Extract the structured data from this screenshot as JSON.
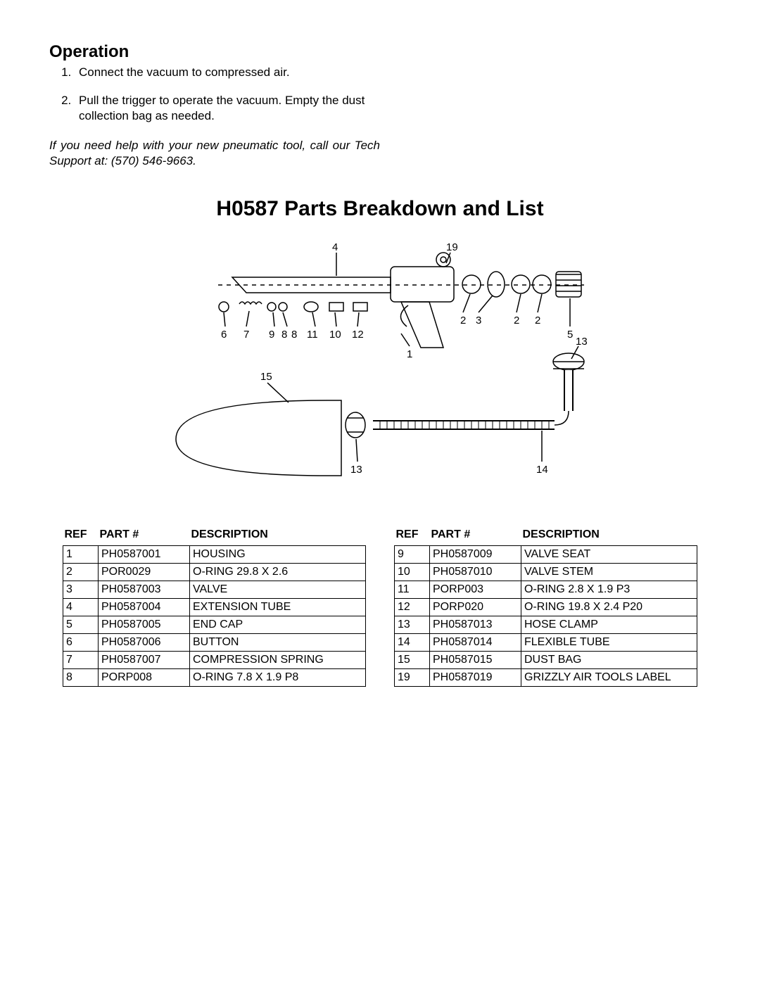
{
  "operation": {
    "heading": "Operation",
    "steps": [
      {
        "num": "1.",
        "text": "Connect the vacuum to compressed air."
      },
      {
        "num": "2.",
        "text": "Pull the trigger to operate the vacuum. Empty the dust collection bag as needed."
      }
    ],
    "help_note": "If you need help with your new pneumatic tool, call our Tech Support at: (570) 546-9663."
  },
  "main_title": "H0587 Parts Breakdown and List",
  "diagram": {
    "callouts": [
      "1",
      "2",
      "3",
      "4",
      "5",
      "6",
      "7",
      "8",
      "8",
      "9",
      "10",
      "11",
      "12",
      "13",
      "13",
      "14",
      "15",
      "19"
    ]
  },
  "table_headers": {
    "ref": "REF",
    "part": "PART #",
    "desc": "DESCRIPTION"
  },
  "parts_left": [
    {
      "ref": "1",
      "part": "PH0587001",
      "desc": "HOUSING"
    },
    {
      "ref": "2",
      "part": "POR0029",
      "desc": "O-RING 29.8 X 2.6"
    },
    {
      "ref": "3",
      "part": "PH0587003",
      "desc": "VALVE"
    },
    {
      "ref": "4",
      "part": "PH0587004",
      "desc": "EXTENSION TUBE"
    },
    {
      "ref": "5",
      "part": "PH0587005",
      "desc": "END CAP"
    },
    {
      "ref": "6",
      "part": "PH0587006",
      "desc": "BUTTON"
    },
    {
      "ref": "7",
      "part": "PH0587007",
      "desc": "COMPRESSION SPRING"
    },
    {
      "ref": "8",
      "part": "PORP008",
      "desc": "O-RING 7.8 X 1.9 P8"
    }
  ],
  "parts_right": [
    {
      "ref": "9",
      "part": "PH0587009",
      "desc": "VALVE SEAT"
    },
    {
      "ref": "10",
      "part": "PH0587010",
      "desc": "VALVE STEM"
    },
    {
      "ref": "11",
      "part": "PORP003",
      "desc": "O-RING 2.8 X 1.9 P3"
    },
    {
      "ref": "12",
      "part": "PORP020",
      "desc": "O-RING 19.8 X 2.4 P20"
    },
    {
      "ref": "13",
      "part": "PH0587013",
      "desc": "HOSE CLAMP"
    },
    {
      "ref": "14",
      "part": "PH0587014",
      "desc": "FLEXIBLE TUBE"
    },
    {
      "ref": "15",
      "part": "PH0587015",
      "desc": "DUST BAG"
    },
    {
      "ref": "19",
      "part": "PH0587019",
      "desc": "GRIZZLY AIR TOOLS LABEL"
    }
  ],
  "colors": {
    "text": "#000000",
    "background": "#ffffff",
    "border": "#000000"
  }
}
